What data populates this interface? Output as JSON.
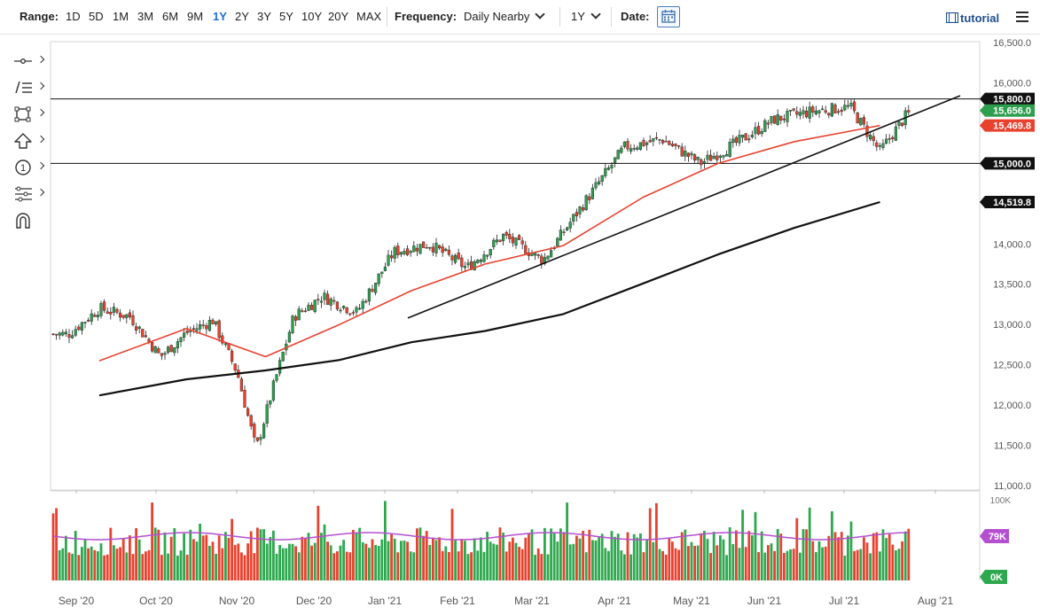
{
  "toolbar": {
    "range_label": "Range:",
    "ranges": [
      "1D",
      "5D",
      "1M",
      "3M",
      "6M",
      "9M",
      "1Y",
      "2Y",
      "3Y",
      "5Y",
      "10Y",
      "20Y",
      "MAX"
    ],
    "active_range": "1Y",
    "frequency_label": "Frequency:",
    "frequency_value": "Daily Nearby",
    "period_value": "1Y",
    "date_label": "Date:",
    "tutorial_label": "tutorial"
  },
  "tools": [
    "crosshair-icon",
    "draw-lines-icon",
    "shapes-icon",
    "arrow-up-icon",
    "annotation-number-icon",
    "fibonacci-icon",
    "magnet-icon"
  ],
  "chart_data": {
    "type": "candlestick",
    "x_axis_labels": [
      "Sep '20",
      "Oct '20",
      "Nov '20",
      "Dec '20",
      "Jan '21",
      "Feb '21",
      "Mar '21",
      "Apr '21",
      "May '21",
      "Jun '21",
      "Jul '21",
      "Aug '21"
    ],
    "price_axis_labels": [
      "16,500.0",
      "16,000.0",
      "15,500.0",
      "15,000.0",
      "14,500.0",
      "14,000.0",
      "13,500.0",
      "13,000.0",
      "12,500.0",
      "12,000.0",
      "11,500.0",
      "11,000.0"
    ],
    "ylim": [
      11000,
      16500
    ],
    "price_markers": [
      {
        "value": "15,800.0",
        "color": "#111111"
      },
      {
        "value": "15,656.0",
        "color": "#2e9e4f"
      },
      {
        "value": "15,469.8",
        "color": "#e8422f"
      },
      {
        "value": "15,000.0",
        "color": "#111111"
      },
      {
        "value": "14,519.8",
        "color": "#111111"
      }
    ],
    "horizontal_lines": [
      15800,
      15000
    ],
    "trendline": {
      "from": [
        "Jan '21",
        13080
      ],
      "to": [
        "Aug '21",
        15840
      ]
    },
    "anchor_closes": [
      [
        "Sep '20",
        12880
      ],
      [
        "Sep '20",
        13200
      ],
      [
        "Sep '20",
        13100
      ],
      [
        "Oct '20",
        12600
      ],
      [
        "Oct '20",
        12900
      ],
      [
        "Oct '20",
        13050
      ],
      [
        "Nov '20",
        12400
      ],
      [
        "Nov '20",
        11450
      ],
      [
        "Nov '20",
        12300
      ],
      [
        "Nov '20",
        13100
      ],
      [
        "Dec '20",
        13350
      ],
      [
        "Dec '20",
        13150
      ],
      [
        "Jan '21",
        13900
      ],
      [
        "Jan '21",
        14000
      ],
      [
        "Feb '21",
        13700
      ],
      [
        "Feb '21",
        14100
      ],
      [
        "Mar '21",
        13800
      ],
      [
        "Mar '21",
        14500
      ],
      [
        "Apr '21",
        15200
      ],
      [
        "Apr '21",
        15300
      ],
      [
        "May '21",
        15000
      ],
      [
        "May '21",
        15250
      ],
      [
        "Jun '21",
        15550
      ],
      [
        "Jun '21",
        15650
      ],
      [
        "Jul '21",
        15700
      ],
      [
        "Jul '21",
        15150
      ],
      [
        "Jul '21",
        15656
      ]
    ],
    "sma_red_points": [
      [
        "Sep '20",
        12550
      ],
      [
        "Oct '20",
        12950
      ],
      [
        "Nov '20",
        12600
      ],
      [
        "Dec '20",
        13000
      ],
      [
        "Jan '21",
        13420
      ],
      [
        "Feb '21",
        13750
      ],
      [
        "Mar '21",
        13980
      ],
      [
        "Apr '21",
        14580
      ],
      [
        "May '21",
        15000
      ],
      [
        "Jun '21",
        15270
      ],
      [
        "Jul '21",
        15470
      ]
    ],
    "sma_black_points": [
      [
        "Sep '20",
        12120
      ],
      [
        "Oct '20",
        12320
      ],
      [
        "Nov '20",
        12430
      ],
      [
        "Dec '20",
        12560
      ],
      [
        "Jan '21",
        12780
      ],
      [
        "Feb '21",
        12920
      ],
      [
        "Mar '21",
        13130
      ],
      [
        "Apr '21",
        13510
      ],
      [
        "May '21",
        13870
      ],
      [
        "Jun '21",
        14200
      ],
      [
        "Jul '21",
        14520
      ]
    ],
    "volume": {
      "axis_labels": [
        "100K",
        "79K",
        "0K"
      ],
      "average_color": "#b44fd0"
    }
  }
}
